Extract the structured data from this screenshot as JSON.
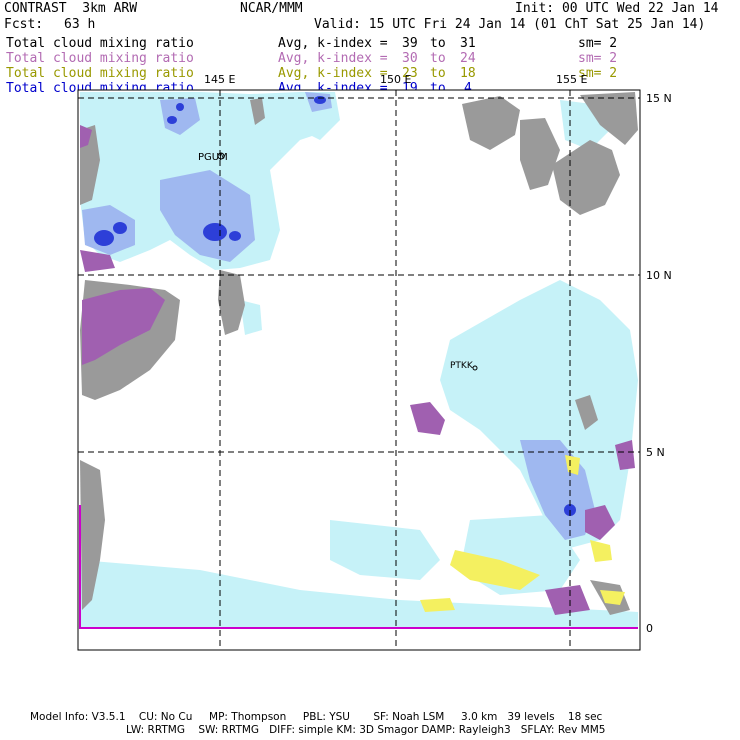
{
  "header": {
    "model": "CONTRAST  3km ARW",
    "center": "NCAR/MMM",
    "init": "Init: 00 UTC Wed 22 Jan 14",
    "fcst_label": "Fcst:",
    "fcst_value": "63 h",
    "valid": "Valid: 15 UTC Fri 24 Jan 14 (01 ChT Sat 25 Jan 14)"
  },
  "legend": [
    {
      "field": "Total cloud mixing ratio",
      "stat": "Avg, k-index =",
      "from": "39",
      "to_word": "to",
      "to": "31",
      "sm": "sm= 2",
      "color": "#000000"
    },
    {
      "field": "Total cloud mixing ratio",
      "stat": "Avg, k-index =",
      "from": "30",
      "to_word": "to",
      "to": "24",
      "sm": "sm= 2",
      "color": "#b36bb3"
    },
    {
      "field": "Total cloud mixing ratio",
      "stat": "Avg, k-index =",
      "from": "23",
      "to_word": "to",
      "to": "18",
      "sm": "sm= 2",
      "color": "#999900"
    },
    {
      "field": "Total cloud mixing ratio",
      "stat": "Avg, k-index =",
      "from": "19",
      "to_word": "to",
      "to": "4",
      "sm": "",
      "color": "#0000cc"
    }
  ],
  "map": {
    "lon_labels": [
      "145 E",
      "150 E",
      "155 E"
    ],
    "lat_labels": [
      "15 N",
      "10 N",
      "5 N",
      "0"
    ],
    "stations": [
      "PGUM",
      "PTKK"
    ],
    "colors": {
      "land": "#9a9a9a",
      "cloud_light": "#c6f2f8",
      "cloud_blue": "#9fb8f0",
      "cloud_dark": "#2d3fd8",
      "mid_cloud": "#a060b0",
      "low_cloud": "#f4f060",
      "border": "#cc00cc"
    }
  },
  "footer": {
    "line1": "Model Info: V3.5.1    CU: No Cu     MP: Thompson     PBL: YSU       SF: Noah LSM     3.0 km   39 levels    18 sec",
    "line2": "LW: RRTMG    SW: RRTMG   DIFF: simple KM: 3D Smagor DAMP: Rayleigh3   SFLAY: Rev MM5"
  }
}
